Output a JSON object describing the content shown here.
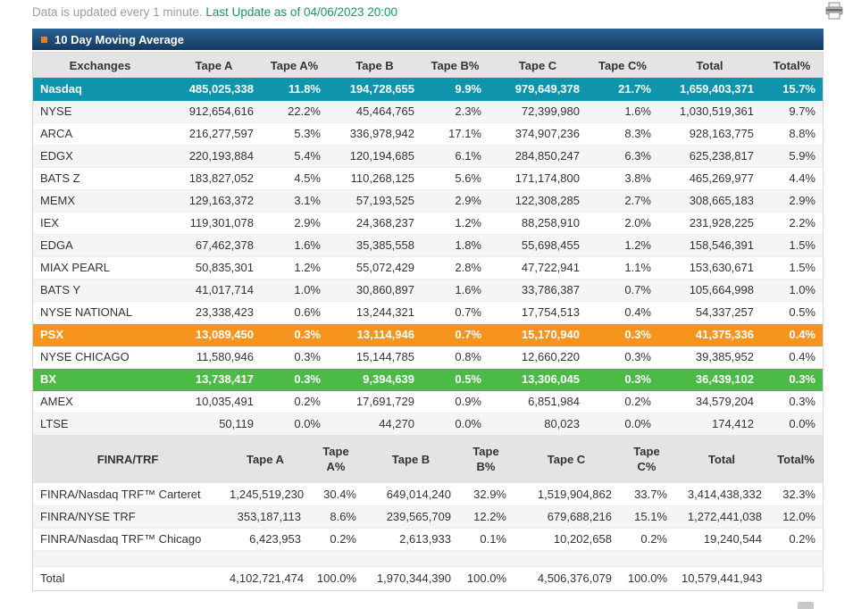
{
  "status_bar": {
    "update_note": "Data is updated every 1 minute.",
    "last_update": "Last Update as of 04/06/2023 20:00"
  },
  "panel_title": "10 Day Moving Average",
  "colors": {
    "teal_row": "#0e95ad",
    "orange_row": "#f7941e",
    "green_row": "#4cba47",
    "header_bar_top": "#2b6396",
    "header_bar_bottom": "#143a61",
    "accent_bullet": "#e8820c",
    "last_update_green": "#0a9e62"
  },
  "exchanges_table": {
    "headers": [
      "Exchanges",
      "Tape A",
      "Tape A%",
      "Tape B",
      "Tape B%",
      "Tape C",
      "Tape C%",
      "Total",
      "Total%"
    ],
    "rows": [
      {
        "name": "Nasdaq",
        "highlight": "teal",
        "values": [
          "485,025,338",
          "11.8%",
          "194,728,655",
          "9.9%",
          "979,649,378",
          "21.7%",
          "1,659,403,371",
          "15.7%"
        ]
      },
      {
        "name": "NYSE",
        "highlight": null,
        "values": [
          "912,654,616",
          "22.2%",
          "45,464,765",
          "2.3%",
          "72,399,980",
          "1.6%",
          "1,030,519,361",
          "9.7%"
        ]
      },
      {
        "name": "ARCA",
        "highlight": null,
        "values": [
          "216,277,597",
          "5.3%",
          "336,978,942",
          "17.1%",
          "374,907,236",
          "8.3%",
          "928,163,775",
          "8.8%"
        ]
      },
      {
        "name": "EDGX",
        "highlight": null,
        "values": [
          "220,193,884",
          "5.4%",
          "120,194,685",
          "6.1%",
          "284,850,247",
          "6.3%",
          "625,238,817",
          "5.9%"
        ]
      },
      {
        "name": "BATS Z",
        "highlight": null,
        "values": [
          "183,827,052",
          "4.5%",
          "110,268,125",
          "5.6%",
          "171,174,800",
          "3.8%",
          "465,269,977",
          "4.4%"
        ]
      },
      {
        "name": "MEMX",
        "highlight": null,
        "values": [
          "129,163,372",
          "3.1%",
          "57,193,525",
          "2.9%",
          "122,308,285",
          "2.7%",
          "308,665,183",
          "2.9%"
        ]
      },
      {
        "name": "IEX",
        "highlight": null,
        "values": [
          "119,301,078",
          "2.9%",
          "24,368,237",
          "1.2%",
          "88,258,910",
          "2.0%",
          "231,928,225",
          "2.2%"
        ]
      },
      {
        "name": "EDGA",
        "highlight": null,
        "values": [
          "67,462,378",
          "1.6%",
          "35,385,558",
          "1.8%",
          "55,698,455",
          "1.2%",
          "158,546,391",
          "1.5%"
        ]
      },
      {
        "name": "MIAX PEARL",
        "highlight": null,
        "values": [
          "50,835,301",
          "1.2%",
          "55,072,429",
          "2.8%",
          "47,722,941",
          "1.1%",
          "153,630,671",
          "1.5%"
        ]
      },
      {
        "name": "BATS Y",
        "highlight": null,
        "values": [
          "41,017,714",
          "1.0%",
          "30,860,897",
          "1.6%",
          "33,786,387",
          "0.7%",
          "105,664,998",
          "1.0%"
        ]
      },
      {
        "name": "NYSE NATIONAL",
        "highlight": null,
        "values": [
          "23,338,423",
          "0.6%",
          "13,244,321",
          "0.7%",
          "17,754,513",
          "0.4%",
          "54,337,257",
          "0.5%"
        ]
      },
      {
        "name": "PSX",
        "highlight": "orange",
        "values": [
          "13,089,450",
          "0.3%",
          "13,114,946",
          "0.7%",
          "15,170,940",
          "0.3%",
          "41,375,336",
          "0.4%"
        ]
      },
      {
        "name": "NYSE CHICAGO",
        "highlight": null,
        "values": [
          "11,580,946",
          "0.3%",
          "15,144,785",
          "0.8%",
          "12,660,220",
          "0.3%",
          "39,385,952",
          "0.4%"
        ]
      },
      {
        "name": "BX",
        "highlight": "green",
        "values": [
          "13,738,417",
          "0.3%",
          "9,394,639",
          "0.5%",
          "13,306,045",
          "0.3%",
          "36,439,102",
          "0.3%"
        ]
      },
      {
        "name": "AMEX",
        "highlight": null,
        "values": [
          "10,035,491",
          "0.2%",
          "17,691,729",
          "0.9%",
          "6,851,984",
          "0.2%",
          "34,579,204",
          "0.3%"
        ]
      },
      {
        "name": "LTSE",
        "highlight": null,
        "values": [
          "50,119",
          "0.0%",
          "44,270",
          "0.0%",
          "80,023",
          "0.0%",
          "174,412",
          "0.0%"
        ]
      }
    ]
  },
  "finra_table": {
    "headers": [
      "FINRA/TRF",
      "Tape A",
      "Tape A%",
      "Tape B",
      "Tape B%",
      "Tape C",
      "Tape C%",
      "Total",
      "Total%"
    ],
    "rows": [
      {
        "name": "FINRA/Nasdaq TRF™ Carteret",
        "highlight": null,
        "values": [
          "1,245,519,230",
          "30.4%",
          "649,014,240",
          "32.9%",
          "1,519,904,862",
          "33.7%",
          "3,414,438,332",
          "32.3%"
        ]
      },
      {
        "name": "FINRA/NYSE TRF",
        "highlight": null,
        "values": [
          "353,187,113",
          "8.6%",
          "239,565,709",
          "12.2%",
          "679,688,216",
          "15.1%",
          "1,272,441,038",
          "12.0%"
        ]
      },
      {
        "name": "FINRA/Nasdaq TRF™ Chicago",
        "highlight": null,
        "values": [
          "6,423,953",
          "0.2%",
          "2,613,933",
          "0.1%",
          "10,202,658",
          "0.2%",
          "19,240,544",
          "0.2%"
        ]
      }
    ],
    "total_row": {
      "name": "Total",
      "values": [
        "4,102,721,474",
        "100.0%",
        "1,970,344,390",
        "100.0%",
        "4,506,376,079",
        "100.0%",
        "10,579,441,943",
        ""
      ]
    }
  }
}
